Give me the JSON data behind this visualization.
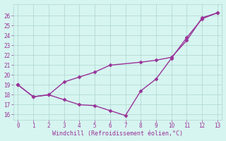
{
  "line1_x": [
    0,
    1,
    2,
    3,
    4,
    5,
    6,
    7,
    8,
    9,
    10,
    11,
    12,
    13
  ],
  "line1_y": [
    19.0,
    17.8,
    18.0,
    17.5,
    17.0,
    16.9,
    16.4,
    15.9,
    18.4,
    19.6,
    21.7,
    23.8,
    25.7,
    26.3
  ],
  "line2_x": [
    0,
    1,
    2,
    3,
    4,
    5,
    6,
    8,
    9,
    10,
    11,
    12,
    13
  ],
  "line2_y": [
    19.0,
    17.8,
    18.0,
    19.3,
    19.8,
    20.3,
    21.0,
    21.3,
    21.5,
    21.8,
    23.5,
    25.8,
    26.3
  ],
  "line_color": "#993399",
  "bg_color": "#d6f5f0",
  "grid_color": "#aed4ce",
  "xlabel": "Windchill (Refroidissement éolien,°C)",
  "ylim": [
    15.5,
    27.2
  ],
  "xlim": [
    -0.3,
    13.3
  ],
  "yticks": [
    16,
    17,
    18,
    19,
    20,
    21,
    22,
    23,
    24,
    25,
    26
  ],
  "xticks": [
    0,
    1,
    2,
    3,
    4,
    5,
    6,
    7,
    8,
    9,
    10,
    11,
    12,
    13
  ],
  "xlabel_color": "#993399",
  "tick_color": "#993399",
  "marker": "D",
  "markersize": 2.5,
  "linewidth": 1.0
}
